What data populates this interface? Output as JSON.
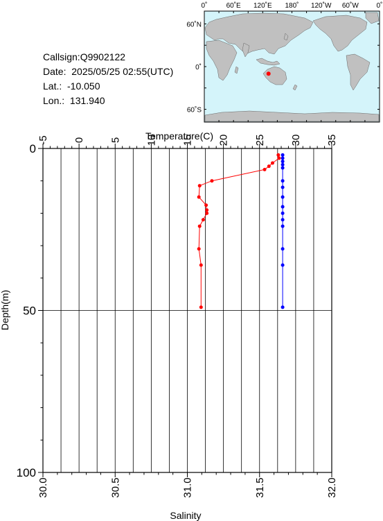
{
  "station": {
    "callsign": "Callsign:Q9902122",
    "date": "Date:  2025/05/25 02:55(UTC)",
    "lat": "Lat.:  -10.050",
    "lon": "Lon.:  131.940"
  },
  "map": {
    "top_ticks": [
      "0˚",
      "60˚E",
      "120˚E",
      "180˚",
      "120˚W",
      "60˚W",
      "0˚"
    ],
    "left_ticks": [
      "60˚N",
      "0˚",
      "60˚S"
    ],
    "ocean_color": "#d4f4fa",
    "land_color": "#c0c0c0",
    "marker_color": "#ff0000",
    "marker": {
      "lon": 131.94,
      "lat": -10.05
    }
  },
  "chart_data": {
    "type": "line",
    "ylabel": "Depth(m)",
    "ylim": [
      0,
      100
    ],
    "y_ticks": [
      "0",
      "50",
      "100"
    ],
    "y_inverted": true,
    "grid": true,
    "temperature_axis": {
      "label": "Temperature(C)",
      "range": [
        -5,
        35
      ],
      "ticks": [
        "-5",
        "0",
        "5",
        "10",
        "15",
        "20",
        "25",
        "30",
        "35"
      ],
      "position": "top"
    },
    "salinity_axis": {
      "label": "Salinity",
      "range": [
        30.0,
        32.0
      ],
      "ticks": [
        "30.0",
        "30.5",
        "31.0",
        "31.5",
        "32.0"
      ],
      "position": "bottom"
    },
    "series": [
      {
        "axis": "temperature",
        "color": "#ff0000",
        "points": [
          {
            "x": 27.6,
            "y": 2.0
          },
          {
            "x": 27.7,
            "y": 3.0
          },
          {
            "x": 26.8,
            "y": 4.5
          },
          {
            "x": 26.3,
            "y": 5.5
          },
          {
            "x": 25.7,
            "y": 6.5
          },
          {
            "x": 18.4,
            "y": 10.0
          },
          {
            "x": 16.7,
            "y": 11.5
          },
          {
            "x": 16.6,
            "y": 15.0
          },
          {
            "x": 17.6,
            "y": 17.5
          },
          {
            "x": 17.7,
            "y": 19.0
          },
          {
            "x": 17.7,
            "y": 20.0
          },
          {
            "x": 17.2,
            "y": 22.0
          },
          {
            "x": 16.7,
            "y": 24.0
          },
          {
            "x": 16.6,
            "y": 31.0
          },
          {
            "x": 16.9,
            "y": 36.0
          },
          {
            "x": 16.9,
            "y": 49.0
          }
        ]
      },
      {
        "axis": "salinity",
        "color": "#0000ff",
        "points": [
          {
            "x": 31.66,
            "y": 2.0
          },
          {
            "x": 31.66,
            "y": 3.0
          },
          {
            "x": 31.66,
            "y": 4.0
          },
          {
            "x": 31.66,
            "y": 5.0
          },
          {
            "x": 31.66,
            "y": 6.0
          },
          {
            "x": 31.66,
            "y": 10.0
          },
          {
            "x": 31.66,
            "y": 12.0
          },
          {
            "x": 31.66,
            "y": 15.0
          },
          {
            "x": 31.66,
            "y": 18.0
          },
          {
            "x": 31.66,
            "y": 20.0
          },
          {
            "x": 31.66,
            "y": 22.0
          },
          {
            "x": 31.66,
            "y": 24.0
          },
          {
            "x": 31.66,
            "y": 31.0
          },
          {
            "x": 31.66,
            "y": 36.0
          },
          {
            "x": 31.66,
            "y": 49.0
          }
        ]
      }
    ]
  }
}
